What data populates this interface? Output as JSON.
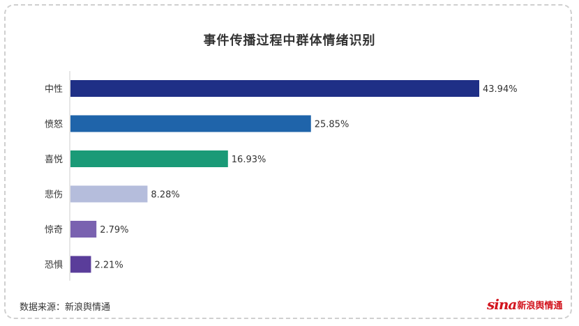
{
  "chart_data": {
    "type": "bar",
    "orientation": "horizontal",
    "title": "事件传播过程中群体情绪识别",
    "categories": [
      "中性",
      "愤怒",
      "喜悦",
      "悲伤",
      "惊奇",
      "恐惧"
    ],
    "values": [
      43.94,
      25.85,
      16.93,
      8.28,
      2.79,
      2.21
    ],
    "value_labels": [
      "43.94%",
      "25.85%",
      "16.93%",
      "8.28%",
      "2.79%",
      "2.21%"
    ],
    "colors": [
      "#1f2f86",
      "#1f64aa",
      "#1a9a77",
      "#b5bddc",
      "#7a62b0",
      "#5a3d9a"
    ],
    "xlim": [
      0,
      45
    ],
    "grid": false,
    "legend": "none"
  },
  "footer": {
    "source": "数据来源：新浪舆情通",
    "logo_sina": "sina",
    "logo_text": "新浪舆情通"
  }
}
